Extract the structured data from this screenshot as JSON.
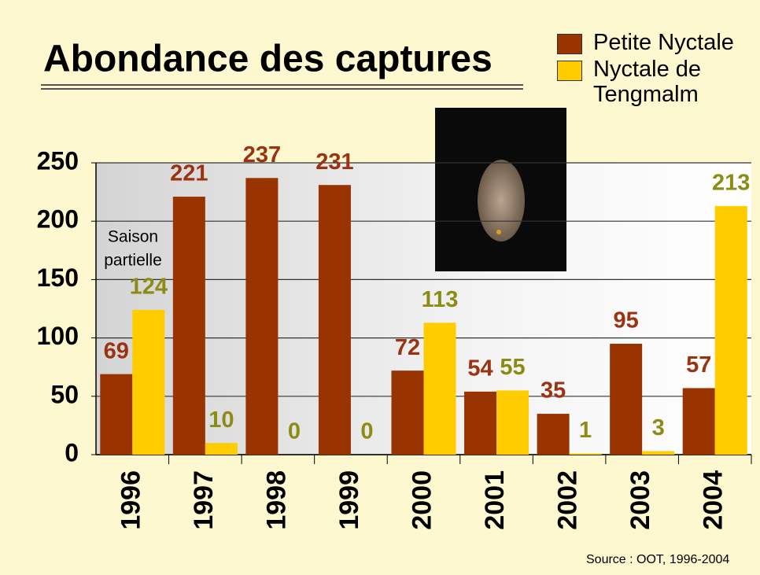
{
  "chart_data": {
    "type": "bar",
    "title": "Abondance des captures",
    "categories": [
      "1996",
      "1997",
      "1998",
      "1999",
      "2000",
      "2001",
      "2002",
      "2003",
      "2004"
    ],
    "series": [
      {
        "name": "Petite Nyctale",
        "color": "#993300",
        "label_color": "#993311",
        "values": [
          69,
          221,
          237,
          231,
          72,
          54,
          35,
          95,
          57
        ]
      },
      {
        "name": "Nyctale de Tengmalm",
        "color": "#ffcc00",
        "label_color": "#8c8c14",
        "values": [
          124,
          10,
          0,
          0,
          113,
          55,
          1,
          3,
          213
        ]
      }
    ],
    "ylim": [
      0,
      250
    ],
    "yticks": [
      0,
      50,
      100,
      150,
      200,
      250
    ],
    "grid": true,
    "annotations": [
      "Saison",
      "partielle"
    ],
    "source": "Source : OOT, 1996-2004"
  }
}
